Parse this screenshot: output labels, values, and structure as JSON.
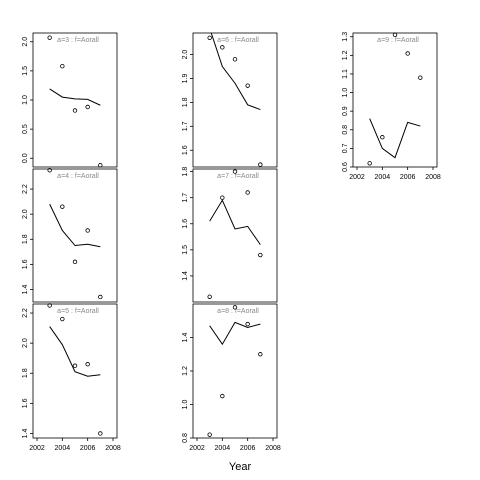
{
  "figure": {
    "xlabel": "Year"
  },
  "chart_data": [
    {
      "type": "line+scatter",
      "title": "a=3  :  f=Aorall",
      "xlim": [
        2002,
        2008
      ],
      "ylim": [
        -0.15,
        2.15
      ],
      "yticks": [
        "0.0",
        "0.5",
        "1.0",
        "1.5",
        "2.0"
      ],
      "ytick_values": [
        0.0,
        0.5,
        1.0,
        1.5,
        2.0
      ],
      "xticks": [],
      "points": {
        "x": [
          2003,
          2004,
          2005,
          2006,
          2007
        ],
        "y": [
          2.07,
          1.58,
          0.82,
          0.88,
          -0.12
        ]
      },
      "fit": {
        "x": [
          2003,
          2004,
          2005,
          2006,
          2007
        ],
        "y": [
          1.19,
          1.05,
          1.02,
          1.01,
          0.91
        ]
      }
    },
    {
      "type": "line+scatter",
      "title": "a=6  :  f=Aorall",
      "xlim": [
        2002,
        2008
      ],
      "ylim": [
        1.53,
        2.09
      ],
      "yticks": [
        "1.6",
        "1.7",
        "1.8",
        "1.9",
        "2.0"
      ],
      "ytick_values": [
        1.6,
        1.7,
        1.8,
        1.9,
        2.0
      ],
      "xticks": [],
      "points": {
        "x": [
          2003,
          2004,
          2005,
          2006,
          2007
        ],
        "y": [
          2.07,
          2.03,
          1.98,
          1.87,
          1.54
        ]
      },
      "fit": {
        "x": [
          2003,
          2004,
          2005,
          2006,
          2007
        ],
        "y": [
          2.11,
          1.95,
          1.88,
          1.79,
          1.77
        ]
      }
    },
    {
      "type": "line+scatter",
      "title": "a=9  :  f=Aorall",
      "xlim": [
        2002,
        2008
      ],
      "ylim": [
        0.6,
        1.32
      ],
      "yticks": [
        "0.6",
        "0.7",
        "0.8",
        "0.9",
        "1.0",
        "1.1",
        "1.2",
        "1.3"
      ],
      "ytick_values": [
        0.6,
        0.7,
        0.8,
        0.9,
        1.0,
        1.1,
        1.2,
        1.3
      ],
      "xticks": [
        "2002",
        "2004",
        "2006",
        "2008"
      ],
      "xtick_values": [
        2002,
        2004,
        2006,
        2008
      ],
      "points": {
        "x": [
          2003,
          2004,
          2005,
          2006,
          2007
        ],
        "y": [
          0.62,
          0.76,
          1.31,
          1.21,
          1.08
        ]
      },
      "fit": {
        "x": [
          2003,
          2004,
          2005,
          2006,
          2007
        ],
        "y": [
          0.86,
          0.7,
          0.65,
          0.84,
          0.82
        ]
      }
    },
    {
      "type": "line+scatter",
      "title": "a=4  :  f=Aorall",
      "xlim": [
        2002,
        2008
      ],
      "ylim": [
        1.3,
        2.36
      ],
      "yticks": [
        "1.4",
        "1.6",
        "1.8",
        "2.0",
        "2.2"
      ],
      "ytick_values": [
        1.4,
        1.6,
        1.8,
        2.0,
        2.2
      ],
      "xticks": [],
      "points": {
        "x": [
          2003,
          2004,
          2005,
          2006,
          2007
        ],
        "y": [
          2.35,
          2.06,
          1.62,
          1.87,
          1.34
        ]
      },
      "fit": {
        "x": [
          2003,
          2004,
          2005,
          2006,
          2007
        ],
        "y": [
          2.08,
          1.87,
          1.75,
          1.76,
          1.74
        ]
      }
    },
    {
      "type": "line+scatter",
      "title": "a=7  :  f=Aorall",
      "xlim": [
        2002,
        2008
      ],
      "ylim": [
        1.3,
        1.81
      ],
      "yticks": [
        "1.4",
        "1.5",
        "1.6",
        "1.7",
        "1.8"
      ],
      "ytick_values": [
        1.4,
        1.5,
        1.6,
        1.7,
        1.8
      ],
      "xticks": [],
      "points": {
        "x": [
          2003,
          2004,
          2005,
          2006,
          2007
        ],
        "y": [
          1.32,
          1.7,
          1.8,
          1.72,
          1.48
        ]
      },
      "fit": {
        "x": [
          2003,
          2004,
          2005,
          2006,
          2007
        ],
        "y": [
          1.61,
          1.69,
          1.58,
          1.59,
          1.52
        ]
      }
    },
    {
      "type": "line+scatter",
      "title": "a=5  :  f=Aorall",
      "xlim": [
        2002,
        2008
      ],
      "ylim": [
        1.37,
        2.26
      ],
      "yticks": [
        "1.4",
        "1.6",
        "1.8",
        "2.0",
        "2.2"
      ],
      "ytick_values": [
        1.4,
        1.6,
        1.8,
        2.0,
        2.2
      ],
      "xticks": [
        "2002",
        "2004",
        "2006",
        "2008"
      ],
      "xtick_values": [
        2002,
        2004,
        2006,
        2008
      ],
      "points": {
        "x": [
          2003,
          2004,
          2005,
          2006,
          2007
        ],
        "y": [
          2.25,
          2.16,
          1.85,
          1.86,
          1.4
        ]
      },
      "fit": {
        "x": [
          2003,
          2004,
          2005,
          2006,
          2007
        ],
        "y": [
          2.11,
          1.99,
          1.81,
          1.78,
          1.79
        ]
      }
    },
    {
      "type": "line+scatter",
      "title": "a=8  :  f=Aorall",
      "xlim": [
        2002,
        2008
      ],
      "ylim": [
        0.8,
        1.6
      ],
      "yticks": [
        "0.8",
        "1.0",
        "1.2",
        "1.4"
      ],
      "ytick_values": [
        0.8,
        1.0,
        1.2,
        1.4
      ],
      "xticks": [
        "2002",
        "2004",
        "2006",
        "2008"
      ],
      "xtick_values": [
        2002,
        2004,
        2006,
        2008
      ],
      "points": {
        "x": [
          2003,
          2004,
          2005,
          2006,
          2007
        ],
        "y": [
          0.82,
          1.05,
          1.58,
          1.48,
          1.3
        ]
      },
      "fit": {
        "x": [
          2003,
          2004,
          2005,
          2006,
          2007
        ],
        "y": [
          1.47,
          1.36,
          1.49,
          1.46,
          1.48
        ]
      }
    }
  ]
}
